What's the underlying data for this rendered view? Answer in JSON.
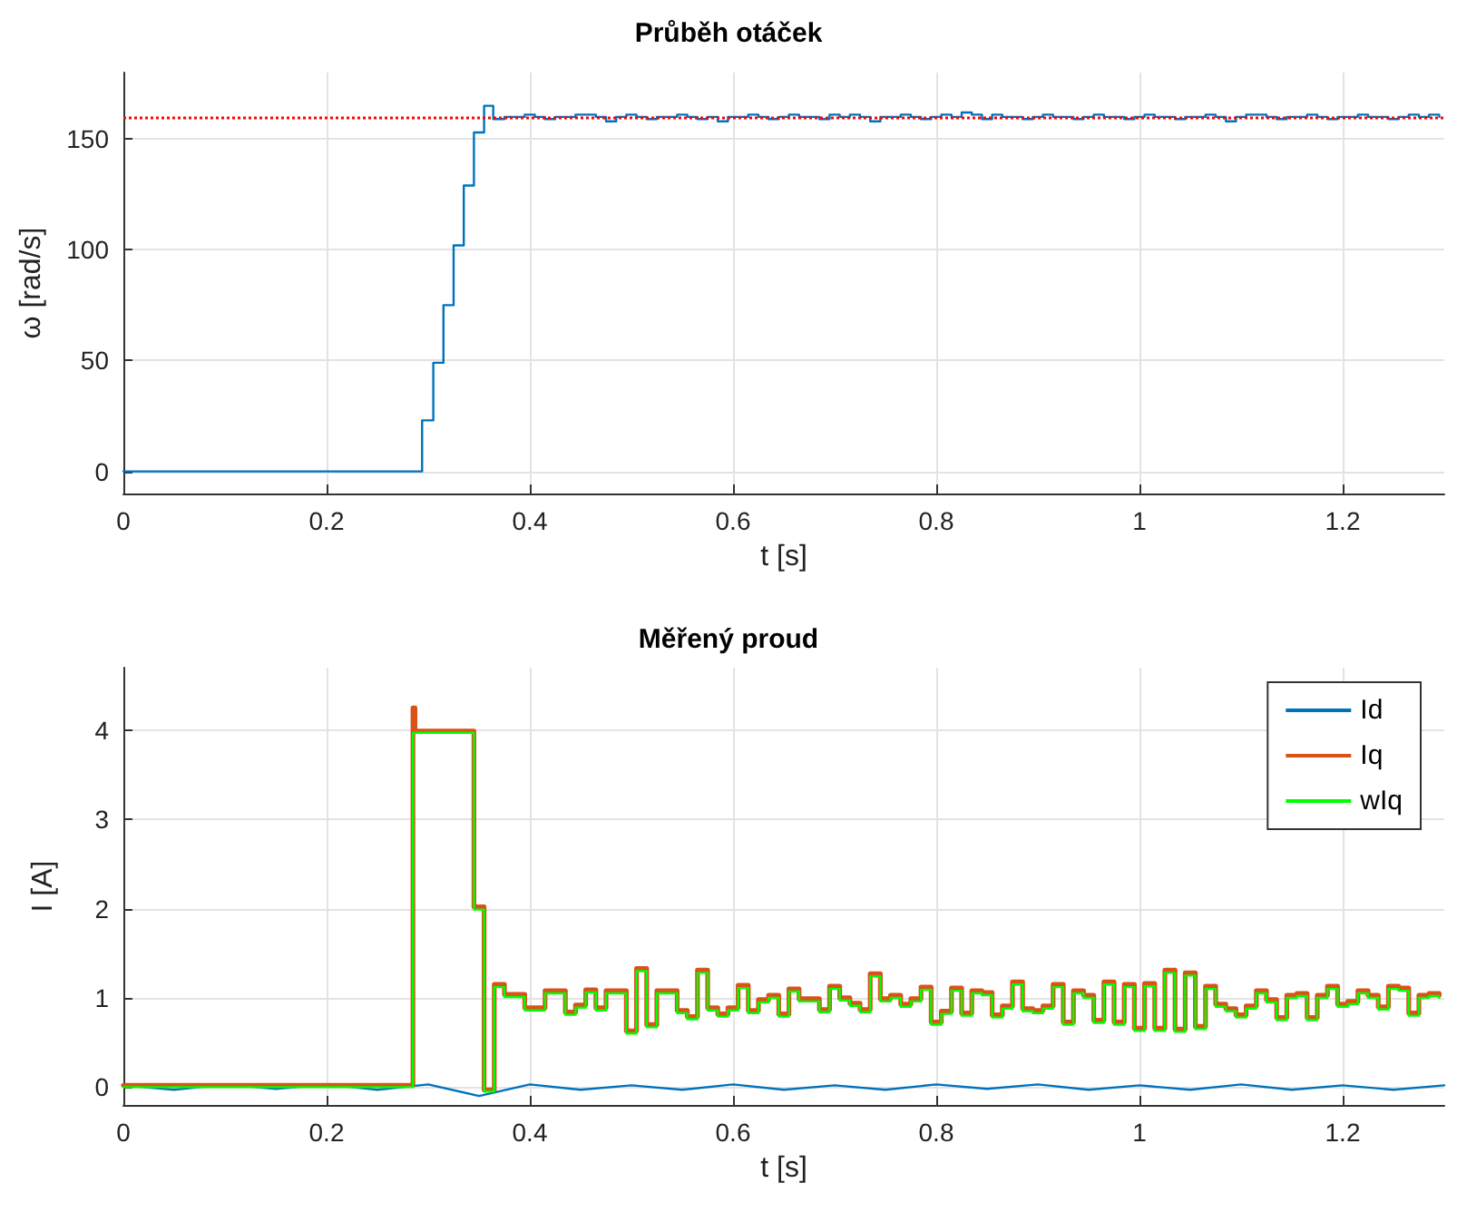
{
  "chart_data": [
    {
      "type": "step",
      "title": "Průběh otáček",
      "xlabel": "t [s]",
      "ylabel": "ω [rad/s]",
      "xlim": [
        0,
        1.3
      ],
      "xticks": [
        0,
        0.2,
        0.4,
        0.6,
        0.8,
        1,
        1.2
      ],
      "ylim": [
        -10,
        180
      ],
      "yticks": [
        0,
        50,
        100,
        150
      ],
      "grid": true,
      "legend": false,
      "marker": "none",
      "line_style": "solid",
      "ref_lines": [
        {
          "axis": "y",
          "value": 160,
          "label": null,
          "color": "#ff0000",
          "line_style": "dotted"
        }
      ],
      "series": [
        {
          "color": "#0072bd",
          "x": [
            0,
            0.294,
            0.305,
            0.315,
            0.325,
            0.335,
            0.345,
            0.355,
            0.364,
            0.375,
            0.385,
            0.395,
            0.405,
            0.415,
            0.425,
            0.435,
            0.445,
            0.455,
            0.465,
            0.475,
            0.485,
            0.495,
            0.505,
            0.515,
            0.525,
            0.535,
            0.545,
            0.555,
            0.565,
            0.575,
            0.585,
            0.595,
            0.605,
            0.615,
            0.625,
            0.635,
            0.645,
            0.655,
            0.665,
            0.675,
            0.685,
            0.695,
            0.705,
            0.715,
            0.725,
            0.735,
            0.745,
            0.755,
            0.765,
            0.775,
            0.785,
            0.795,
            0.805,
            0.815,
            0.825,
            0.835,
            0.845,
            0.855,
            0.865,
            0.875,
            0.885,
            0.895,
            0.905,
            0.915,
            0.925,
            0.935,
            0.945,
            0.955,
            0.965,
            0.975,
            0.985,
            0.995,
            1.005,
            1.015,
            1.025,
            1.035,
            1.045,
            1.055,
            1.065,
            1.075,
            1.085,
            1.095,
            1.105,
            1.115,
            1.125,
            1.135,
            1.145,
            1.155,
            1.165,
            1.175,
            1.185,
            1.195,
            1.205,
            1.215,
            1.225,
            1.235,
            1.245,
            1.255,
            1.265,
            1.275,
            1.285,
            1.295
          ],
          "values": [
            0,
            23,
            49,
            75,
            102,
            129,
            153,
            165,
            159,
            160,
            160,
            161,
            160,
            159,
            160,
            160,
            161,
            161,
            160,
            158,
            160,
            161,
            160,
            159,
            160,
            160,
            161,
            160,
            159,
            160,
            158,
            160,
            160,
            161,
            160,
            159,
            160,
            161,
            160,
            160,
            159,
            161,
            160,
            161,
            160,
            158,
            160,
            160,
            161,
            160,
            159,
            160,
            161,
            160,
            162,
            161,
            159,
            161,
            160,
            160,
            159,
            160,
            161,
            160,
            160,
            159,
            160,
            161,
            160,
            160,
            159,
            160,
            161,
            160,
            160,
            159,
            160,
            160,
            161,
            160,
            158,
            160,
            161,
            161,
            160,
            159,
            160,
            160,
            161,
            160,
            159,
            160,
            160,
            161,
            160,
            160,
            159,
            160,
            161,
            160,
            161,
            160
          ]
        }
      ]
    },
    {
      "type": "line",
      "title": "Měřený proud",
      "xlabel": "t [s]",
      "ylabel": "I [A]",
      "xlim": [
        0,
        1.3
      ],
      "xticks": [
        0,
        0.2,
        0.4,
        0.6,
        0.8,
        1,
        1.2
      ],
      "ylim": [
        -0.2,
        4.7
      ],
      "yticks": [
        0,
        1,
        2,
        3,
        4
      ],
      "grid": true,
      "legend": "top right",
      "marker": "none",
      "line_style": "solid",
      "series": [
        {
          "name": "Id",
          "color": "#0072bd",
          "x": [
            0,
            0.05,
            0.1,
            0.15,
            0.2,
            0.25,
            0.3,
            0.35,
            0.4,
            0.45,
            0.5,
            0.55,
            0.6,
            0.65,
            0.7,
            0.75,
            0.8,
            0.85,
            0.9,
            0.95,
            1,
            1.05,
            1.1,
            1.15,
            1.2,
            1.25,
            1.3
          ],
          "values": [
            0.02,
            -0.03,
            0.03,
            -0.02,
            0.03,
            -0.03,
            0.03,
            -0.1,
            0.03,
            -0.03,
            0.02,
            -0.03,
            0.03,
            -0.03,
            0.02,
            -0.03,
            0.03,
            -0.02,
            0.03,
            -0.03,
            0.02,
            -0.03,
            0.03,
            -0.03,
            0.02,
            -0.03,
            0.02
          ]
        },
        {
          "name": "Iq",
          "color": "#d95319",
          "type": "step",
          "x": [
            0,
            0.285,
            0.287,
            0.345,
            0.355,
            0.365,
            0.375,
            0.385,
            0.395,
            0.405,
            0.415,
            0.425,
            0.435,
            0.445,
            0.455,
            0.465,
            0.475,
            0.485,
            0.495,
            0.505,
            0.515,
            0.525,
            0.535,
            0.545,
            0.555,
            0.565,
            0.575,
            0.585,
            0.595,
            0.605,
            0.615,
            0.625,
            0.635,
            0.645,
            0.655,
            0.665,
            0.675,
            0.685,
            0.695,
            0.705,
            0.715,
            0.725,
            0.735,
            0.745,
            0.755,
            0.765,
            0.775,
            0.785,
            0.795,
            0.805,
            0.815,
            0.825,
            0.835,
            0.845,
            0.855,
            0.865,
            0.875,
            0.885,
            0.895,
            0.905,
            0.915,
            0.925,
            0.935,
            0.945,
            0.955,
            0.965,
            0.975,
            0.985,
            0.995,
            1.005,
            1.015,
            1.025,
            1.035,
            1.045,
            1.055,
            1.065,
            1.075,
            1.085,
            1.095,
            1.105,
            1.115,
            1.125,
            1.135,
            1.145,
            1.155,
            1.165,
            1.175,
            1.185,
            1.195,
            1.205,
            1.215,
            1.225,
            1.235,
            1.245,
            1.255,
            1.265,
            1.275,
            1.285,
            1.295
          ],
          "values": [
            0.02,
            4.25,
            3.99,
            2.02,
            -0.03,
            1.15,
            1.04,
            1.04,
            0.89,
            0.89,
            1.08,
            1.08,
            0.84,
            0.92,
            1.09,
            0.89,
            1.08,
            1.08,
            0.63,
            1.33,
            0.7,
            1.08,
            1.08,
            0.86,
            0.79,
            1.31,
            0.89,
            0.82,
            0.89,
            1.14,
            0.86,
            0.98,
            1.03,
            0.82,
            1.1,
            0.99,
            0.99,
            0.87,
            1.13,
            1.0,
            0.94,
            0.87,
            1.27,
            0.99,
            1.03,
            0.93,
            0.99,
            1.12,
            0.73,
            0.85,
            1.11,
            0.83,
            1.08,
            1.06,
            0.81,
            0.91,
            1.18,
            0.88,
            0.86,
            0.91,
            1.15,
            0.73,
            1.08,
            1.03,
            0.75,
            1.18,
            0.73,
            1.15,
            0.66,
            1.16,
            0.66,
            1.31,
            0.65,
            1.28,
            0.68,
            1.13,
            0.93,
            0.88,
            0.81,
            0.91,
            1.08,
            0.98,
            0.78,
            1.03,
            1.05,
            0.78,
            1.03,
            1.13,
            0.93,
            0.96,
            1.08,
            1.03,
            0.9,
            1.13,
            1.11,
            0.83,
            1.03,
            1.05,
            1.03
          ]
        },
        {
          "name": "wIq",
          "color": "#00ff00",
          "type": "step",
          "x": [
            0,
            0.285,
            0.345,
            0.355,
            0.365,
            0.375,
            0.385,
            0.395,
            0.405,
            0.415,
            0.425,
            0.435,
            0.445,
            0.455,
            0.465,
            0.475,
            0.485,
            0.495,
            0.505,
            0.515,
            0.525,
            0.535,
            0.545,
            0.555,
            0.565,
            0.575,
            0.585,
            0.595,
            0.605,
            0.615,
            0.625,
            0.635,
            0.645,
            0.655,
            0.665,
            0.675,
            0.685,
            0.695,
            0.705,
            0.715,
            0.725,
            0.735,
            0.745,
            0.755,
            0.765,
            0.775,
            0.785,
            0.795,
            0.805,
            0.815,
            0.825,
            0.835,
            0.845,
            0.855,
            0.865,
            0.875,
            0.885,
            0.895,
            0.905,
            0.915,
            0.925,
            0.935,
            0.945,
            0.955,
            0.965,
            0.975,
            0.985,
            0.995,
            1.005,
            1.015,
            1.025,
            1.035,
            1.045,
            1.055,
            1.065,
            1.075,
            1.085,
            1.095,
            1.105,
            1.115,
            1.125,
            1.135,
            1.145,
            1.155,
            1.165,
            1.175,
            1.185,
            1.195,
            1.205,
            1.215,
            1.225,
            1.235,
            1.245,
            1.255,
            1.265,
            1.275,
            1.285,
            1.295
          ],
          "values": [
            0,
            3.97,
            1.99,
            -0.05,
            1.12,
            1.01,
            1.01,
            0.86,
            0.86,
            1.05,
            1.05,
            0.81,
            0.89,
            1.06,
            0.86,
            1.05,
            1.05,
            0.6,
            1.3,
            0.67,
            1.05,
            1.05,
            0.83,
            0.76,
            1.28,
            0.86,
            0.79,
            0.86,
            1.11,
            0.83,
            0.95,
            1.0,
            0.79,
            1.07,
            0.96,
            0.96,
            0.84,
            1.1,
            0.97,
            0.91,
            0.84,
            1.24,
            0.96,
            1.0,
            0.9,
            0.96,
            1.09,
            0.7,
            0.82,
            1.08,
            0.8,
            1.05,
            1.03,
            0.78,
            0.88,
            1.15,
            0.85,
            0.83,
            0.88,
            1.12,
            0.7,
            1.05,
            1.0,
            0.72,
            1.15,
            0.7,
            1.12,
            0.63,
            1.13,
            0.63,
            1.28,
            0.62,
            1.25,
            0.65,
            1.1,
            0.9,
            0.85,
            0.78,
            0.88,
            1.05,
            0.95,
            0.75,
            1.0,
            1.02,
            0.75,
            1.0,
            1.1,
            0.9,
            0.93,
            1.05,
            1.0,
            0.87,
            1.1,
            1.08,
            0.8,
            1.0,
            1.02,
            1.0
          ]
        }
      ]
    }
  ]
}
